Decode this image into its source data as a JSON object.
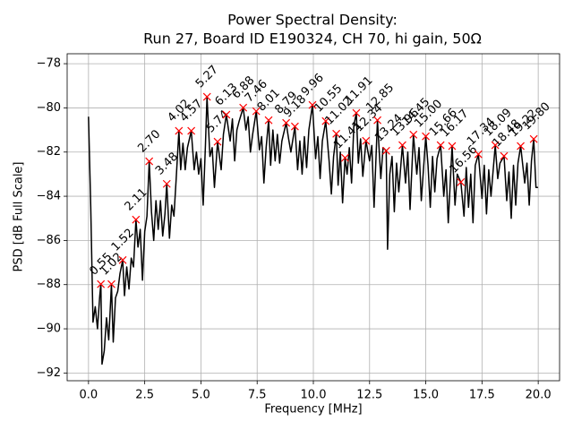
{
  "chart_data": {
    "type": "line",
    "title": "Power Spectral Density:",
    "subtitle": "Run 27, Board ID E190324, CH 70, hi gain, 50Ω",
    "x_label": "Frequency [MHz]",
    "y_label": "PSD [dB Full Scale]",
    "xlim": [
      -0.95,
      20.95
    ],
    "ylim": [
      -92.35,
      -77.55
    ],
    "xticks": [
      {
        "value": 0,
        "label": "0.0"
      },
      2.5,
      {
        "value": 5,
        "label": "5.0"
      },
      7.5,
      {
        "value": 10,
        "label": "10.0"
      },
      12.5,
      {
        "value": 15,
        "label": "15.0"
      },
      17.5,
      {
        "value": 20,
        "label": "20.0"
      }
    ],
    "yticks": [
      {
        "value": -92,
        "label": "−92"
      },
      {
        "value": -90,
        "label": "−90"
      },
      {
        "value": -88,
        "label": "−88"
      },
      {
        "value": -86,
        "label": "−86"
      },
      {
        "value": -84,
        "label": "−84"
      },
      {
        "value": -82,
        "label": "−82"
      },
      {
        "value": -80,
        "label": "−80"
      },
      {
        "value": -78,
        "label": "−78"
      }
    ],
    "grid": true,
    "series": [
      {
        "type": "line",
        "color": "#000000",
        "x": [
          0.0,
          0.1,
          0.2,
          0.3,
          0.4,
          0.5,
          0.55,
          0.6,
          0.7,
          0.8,
          0.9,
          1.02,
          1.1,
          1.2,
          1.3,
          1.4,
          1.52,
          1.6,
          1.7,
          1.8,
          1.9,
          2.0,
          2.11,
          2.2,
          2.3,
          2.4,
          2.5,
          2.6,
          2.7,
          2.8,
          2.9,
          3.0,
          3.1,
          3.2,
          3.3,
          3.4,
          3.48,
          3.6,
          3.7,
          3.8,
          3.9,
          4.02,
          4.1,
          4.2,
          4.3,
          4.4,
          4.57,
          4.7,
          4.8,
          4.9,
          5.0,
          5.1,
          5.2,
          5.27,
          5.4,
          5.5,
          5.6,
          5.74,
          5.9,
          6.0,
          6.13,
          6.3,
          6.4,
          6.5,
          6.6,
          6.7,
          6.88,
          7.0,
          7.1,
          7.2,
          7.3,
          7.46,
          7.6,
          7.7,
          7.8,
          7.9,
          8.01,
          8.1,
          8.2,
          8.3,
          8.4,
          8.5,
          8.6,
          8.79,
          8.9,
          9.0,
          9.18,
          9.3,
          9.4,
          9.5,
          9.6,
          9.7,
          9.8,
          9.96,
          10.1,
          10.2,
          10.3,
          10.4,
          10.55,
          10.7,
          10.8,
          10.9,
          11.02,
          11.1,
          11.2,
          11.3,
          11.41,
          11.5,
          11.6,
          11.7,
          11.8,
          11.91,
          12.0,
          12.1,
          12.2,
          12.34,
          12.5,
          12.6,
          12.7,
          12.85,
          13.0,
          13.1,
          13.24,
          13.3,
          13.4,
          13.5,
          13.6,
          13.7,
          13.8,
          13.96,
          14.1,
          14.2,
          14.3,
          14.45,
          14.6,
          14.7,
          14.8,
          15.0,
          15.1,
          15.2,
          15.3,
          15.4,
          15.5,
          15.66,
          15.8,
          15.9,
          16.0,
          16.17,
          16.3,
          16.4,
          16.56,
          16.7,
          16.8,
          16.9,
          17.0,
          17.1,
          17.2,
          17.34,
          17.5,
          17.6,
          17.7,
          17.8,
          17.9,
          18.09,
          18.2,
          18.3,
          18.48,
          18.6,
          18.7,
          18.8,
          18.9,
          19.0,
          19.1,
          19.22,
          19.4,
          19.5,
          19.6,
          19.7,
          19.8,
          19.9,
          19.99
        ],
        "values": [
          -80.4,
          -84.5,
          -89.7,
          -89.0,
          -90.0,
          -88.5,
          -87.98,
          -91.6,
          -91.0,
          -89.5,
          -90.5,
          -87.98,
          -90.6,
          -88.6,
          -88.3,
          -87.5,
          -86.89,
          -88.5,
          -87.2,
          -88.2,
          -86.8,
          -87.2,
          -85.06,
          -86.3,
          -85.5,
          -87.8,
          -85.6,
          -84.9,
          -82.42,
          -84.7,
          -86.0,
          -84.2,
          -85.5,
          -84.2,
          -85.8,
          -84.8,
          -83.44,
          -85.9,
          -84.4,
          -84.9,
          -83.2,
          -81.04,
          -82.8,
          -81.6,
          -82.8,
          -81.8,
          -81.04,
          -82.8,
          -82.0,
          -83.0,
          -82.3,
          -84.4,
          -81.7,
          -79.5,
          -82.2,
          -81.8,
          -83.6,
          -81.53,
          -82.8,
          -81.2,
          -80.31,
          -81.5,
          -80.5,
          -82.4,
          -81.0,
          -80.6,
          -79.99,
          -81.0,
          -80.4,
          -82.0,
          -81.2,
          -80.15,
          -81.9,
          -81.3,
          -83.4,
          -81.8,
          -80.56,
          -82.6,
          -81.0,
          -82.4,
          -81.2,
          -82.5,
          -81.5,
          -80.68,
          -81.4,
          -82.0,
          -80.84,
          -82.8,
          -81.5,
          -83.0,
          -81.3,
          -82.7,
          -81.0,
          -79.87,
          -82.3,
          -81.3,
          -83.2,
          -81.5,
          -80.6,
          -82.4,
          -83.9,
          -82.2,
          -81.17,
          -83.5,
          -82.0,
          -84.3,
          -82.26,
          -83.0,
          -81.8,
          -83.4,
          -80.8,
          -80.23,
          -82.5,
          -81.4,
          -83.1,
          -81.49,
          -82.4,
          -81.7,
          -84.5,
          -80.56,
          -83.2,
          -81.8,
          -81.94,
          -86.4,
          -83.0,
          -82.2,
          -84.7,
          -82.5,
          -83.8,
          -81.69,
          -83.4,
          -82.0,
          -84.6,
          -81.21,
          -83.0,
          -81.8,
          -84.2,
          -81.29,
          -82.6,
          -84.5,
          -82.2,
          -83.8,
          -82.3,
          -81.69,
          -84.0,
          -82.8,
          -85.2,
          -81.73,
          -84.4,
          -83.0,
          -83.36,
          -84.9,
          -82.7,
          -84.5,
          -83.0,
          -85.2,
          -82.6,
          -82.1,
          -84.1,
          -82.6,
          -84.8,
          -82.8,
          -84.0,
          -81.69,
          -83.2,
          -82.5,
          -82.18,
          -84.2,
          -82.9,
          -85.0,
          -82.6,
          -84.4,
          -82.5,
          -81.73,
          -83.4,
          -82.5,
          -84.4,
          -82.4,
          -81.41,
          -83.6,
          -83.6
        ]
      },
      {
        "type": "scatter",
        "color": "#ff0000",
        "x": [
          0.55,
          1.02,
          1.52,
          2.11,
          2.7,
          3.48,
          4.02,
          4.57,
          5.27,
          5.74,
          6.13,
          6.88,
          7.46,
          8.01,
          8.79,
          9.18,
          9.96,
          10.55,
          11.02,
          11.41,
          11.91,
          12.34,
          12.85,
          13.24,
          13.96,
          14.45,
          15.0,
          15.66,
          16.17,
          16.56,
          17.34,
          18.09,
          18.48,
          19.22,
          19.8
        ],
        "x_labels": [
          "0.55",
          "1.02",
          "1.52",
          "2.11",
          "2.70",
          "3.48",
          "4.02",
          "4.57",
          "5.27",
          "5.74",
          "6.13",
          "6.88",
          "7.46",
          "8.01",
          "8.79",
          "9.18",
          "9.96",
          "10.55",
          "11.02",
          "11.41",
          "11.91",
          "12.34",
          "12.85",
          "13.24",
          "13.96",
          "14.45",
          "15.00",
          "15.66",
          "16.17",
          "16.56",
          "17.34",
          "18.09",
          "18.48",
          "19.22",
          "19.80"
        ],
        "values": [
          -87.98,
          -87.98,
          -86.89,
          -85.06,
          -82.42,
          -83.44,
          -81.04,
          -81.04,
          -79.5,
          -81.53,
          -80.31,
          -79.99,
          -80.15,
          -80.56,
          -80.68,
          -80.84,
          -79.87,
          -80.6,
          -81.17,
          -82.26,
          -80.23,
          -81.49,
          -80.56,
          -81.94,
          -81.69,
          -81.21,
          -81.29,
          -81.69,
          -81.73,
          -83.36,
          -82.1,
          -81.69,
          -82.18,
          -81.73,
          -81.41
        ]
      }
    ]
  }
}
